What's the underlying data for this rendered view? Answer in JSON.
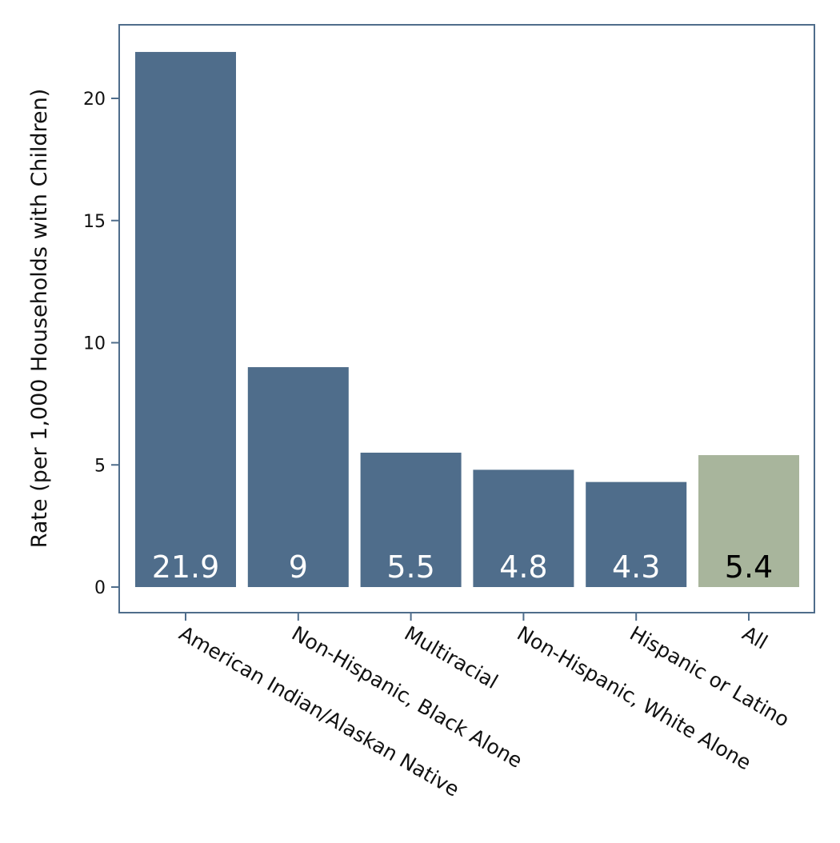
{
  "chart_data": {
    "type": "bar",
    "title": "",
    "xlabel": "",
    "ylabel": "Rate (per 1,000 Households with Children)",
    "categories": [
      "American Indian/Alaskan Native",
      "Non-Hispanic, Black Alone",
      "Multiracial",
      "Non-Hispanic, White Alone",
      "Hispanic or Latino",
      "All"
    ],
    "values": [
      21.9,
      9,
      5.5,
      4.8,
      4.3,
      5.4
    ],
    "data_labels": [
      "21.9",
      "9",
      "5.5",
      "4.8",
      "4.3",
      "5.4"
    ],
    "bar_colors": [
      "#4f6d8b",
      "#4f6d8b",
      "#4f6d8b",
      "#4f6d8b",
      "#4f6d8b",
      "#a8b59c"
    ],
    "label_colors": [
      "#ffffff",
      "#ffffff",
      "#ffffff",
      "#ffffff",
      "#ffffff",
      "#000000"
    ],
    "yticks": [
      0,
      5,
      10,
      15,
      20
    ],
    "ylim": [
      -1.1,
      23
    ],
    "grid": false,
    "legend": "none",
    "frame_color": "#4f6d8b"
  }
}
